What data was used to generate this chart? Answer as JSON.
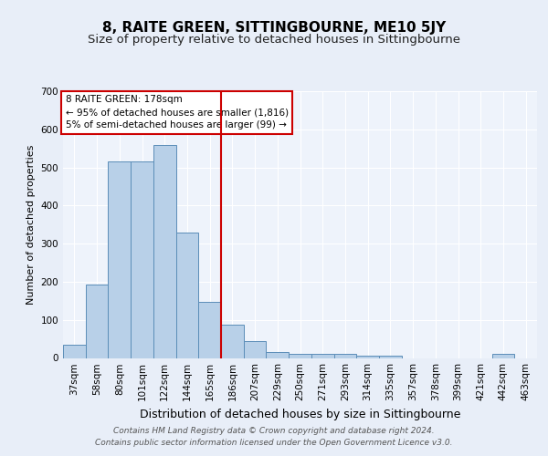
{
  "title": "8, RAITE GREEN, SITTINGBOURNE, ME10 5JY",
  "subtitle": "Size of property relative to detached houses in Sittingbourne",
  "xlabel": "Distribution of detached houses by size in Sittingbourne",
  "ylabel": "Number of detached properties",
  "categories": [
    "37sqm",
    "58sqm",
    "80sqm",
    "101sqm",
    "122sqm",
    "144sqm",
    "165sqm",
    "186sqm",
    "207sqm",
    "229sqm",
    "250sqm",
    "271sqm",
    "293sqm",
    "314sqm",
    "335sqm",
    "357sqm",
    "378sqm",
    "399sqm",
    "421sqm",
    "442sqm",
    "463sqm"
  ],
  "values": [
    35,
    192,
    515,
    515,
    560,
    330,
    147,
    88,
    44,
    15,
    10,
    10,
    10,
    7,
    7,
    0,
    0,
    0,
    0,
    10,
    0
  ],
  "bar_color": "#b8d0e8",
  "bar_edge_color": "#5b8db8",
  "vline_x_index": 7,
  "vline_color": "#cc0000",
  "annotation_text": "8 RAITE GREEN: 178sqm\n← 95% of detached houses are smaller (1,816)\n5% of semi-detached houses are larger (99) →",
  "annotation_box_edgecolor": "#cc0000",
  "footer_line1": "Contains HM Land Registry data © Crown copyright and database right 2024.",
  "footer_line2": "Contains public sector information licensed under the Open Government Licence v3.0.",
  "bg_color": "#e8eef8",
  "plot_bg_color": "#eef3fb",
  "grid_color": "#ffffff",
  "ylim": [
    0,
    700
  ],
  "yticks": [
    0,
    100,
    200,
    300,
    400,
    500,
    600,
    700
  ],
  "title_fontsize": 11,
  "subtitle_fontsize": 9.5,
  "xlabel_fontsize": 9,
  "ylabel_fontsize": 8,
  "tick_fontsize": 7.5,
  "footer_fontsize": 6.5,
  "annot_fontsize": 7.5
}
